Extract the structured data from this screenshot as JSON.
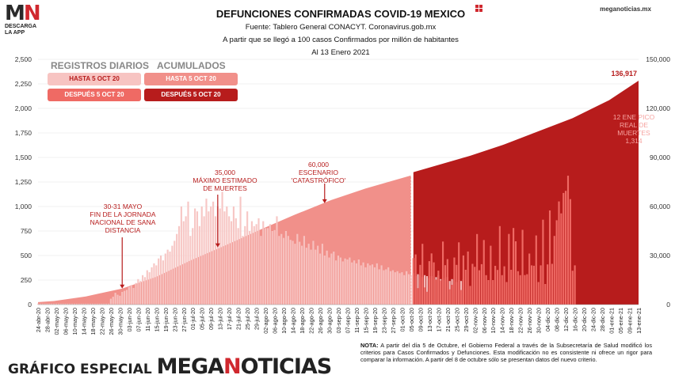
{
  "logo": {
    "mark_m": "M",
    "mark_n": "N",
    "line1": "DESCARGA",
    "line2": "LA APP"
  },
  "brand": "meganoticias.mx",
  "header": {
    "title": "DEFUNCIONES CONFIRMADAS COVID-19 MEXICO",
    "source": "Fuente: Tablero General CONACYT. Coronavirus.gob.mx",
    "basis": "A partir que se llegó a 100 casos Confirmados por millón de habitantes",
    "date": "Al 13 Enero 2021"
  },
  "legend": {
    "daily_header": "REGISTROS DIARIOS",
    "cumulative_header": "ACUMULADOS",
    "daily_before": "HASTA 5 OCT 20",
    "daily_after": "DESPUÉS 5 OCT 20",
    "cum_before": "HASTA 5 OCT 20",
    "cum_after": "DESPUÉS 5 OCT 20",
    "colors": {
      "daily_before": "#f7c4c2",
      "daily_after": "#ef6a64",
      "cum_before": "#f1908a",
      "cum_after": "#b71c1c"
    }
  },
  "annotations": {
    "end_sana_distancia": [
      "30-31 MAYO",
      "FIN DE LA JORNADA",
      "NACIONAL DE SANA",
      "DISTANCIA"
    ],
    "max_estimado": [
      "35,000",
      "MÁXIMO ESTIMADO",
      "DE MUERTES"
    ],
    "catastrofico": [
      "60,000",
      "ESCENARIO",
      "'CATASTRÓFICO'"
    ],
    "pico": [
      "12 ENE PICO",
      "REAL DE",
      "MUERTES",
      "1,314"
    ]
  },
  "footer": {
    "label": "GRÁFICO ESPECIAL",
    "brand_a": "MEGA",
    "brand_b": "N",
    "brand_c": "OTICIAS",
    "nota_label": "NOTA:",
    "nota_text": " A partir del día 5 de Octubre, el Gobierno Federal a través de la Subsecretaría de Salud modificó los criterios para Casos Confirmados y Defunciones. Esta modificación no es consistente ni ofrece un rigor para comparar la información. A partir del 8 de octubre sólo se presentan datos del nuevo criterio."
  },
  "chart_data": {
    "type": "bar",
    "left_axis": {
      "label": "Registros diarios",
      "ticks": [
        0,
        250,
        500,
        750,
        1000,
        1250,
        1500,
        1750,
        2000,
        2250,
        2500
      ],
      "tick_labels": [
        "0",
        "250",
        "500",
        "750",
        "1,000",
        "1,250",
        "1,500",
        "1,750",
        "2,000",
        "2,250",
        "2,500"
      ],
      "ylim": [
        0,
        2500
      ]
    },
    "right_axis": {
      "label": "Acumulados",
      "ticks": [
        0,
        30000,
        60000,
        90000,
        120000,
        150000
      ],
      "tick_labels": [
        "0",
        "30,000",
        "60,000",
        "90,000",
        "120,000",
        "150,000"
      ],
      "ylim": [
        0,
        150000
      ]
    },
    "x_range": [
      "2020-04-24",
      "2021-01-13"
    ],
    "x_tick_labels": [
      "24-abr-20",
      "28-abr-20",
      "02-may-20",
      "06-may-20",
      "10-may-20",
      "14-may-20",
      "18-may-20",
      "22-may-20",
      "26-may-20",
      "30-may-20",
      "03-jun-20",
      "07-jun-20",
      "11-jun-20",
      "15-jun-20",
      "19-jun-20",
      "23-jun-20",
      "27-jun-20",
      "01-jul-20",
      "05-jul-20",
      "09-jul-20",
      "13-jul-20",
      "17-jul-20",
      "21-jul-20",
      "25-jul-20",
      "29-jul-20",
      "02-ago-20",
      "06-ago-20",
      "10-ago-20",
      "14-ago-20",
      "18-ago-20",
      "22-ago-20",
      "26-ago-20",
      "30-ago-20",
      "03-sep-20",
      "07-sep-20",
      "11-sep-20",
      "15-sep-20",
      "19-sep-20",
      "23-sep-20",
      "27-sep-20",
      "01-oct-20",
      "05-oct-20",
      "09-oct-20",
      "13-oct-20",
      "17-oct-20",
      "21-oct-20",
      "25-oct-20",
      "29-oct-20",
      "02-nov-20",
      "06-nov-20",
      "10-nov-20",
      "14-nov-20",
      "18-nov-20",
      "22-nov-20",
      "26-nov-20",
      "30-nov-20",
      "04-dic-20",
      "08-dic-20",
      "12-dic-20",
      "16-dic-20",
      "20-dic-20",
      "24-dic-20",
      "28-dic-20",
      "01-ene-21",
      "05-ene-21",
      "09-ene-21",
      "13-ene-21"
    ],
    "regime_change": "2020-10-05",
    "daily_before": {
      "name": "Registros diarios hasta 5 oct 20",
      "x_start": "2020-04-24",
      "values": [
        10,
        10,
        10,
        10,
        10,
        10,
        10,
        10,
        10,
        10,
        10,
        10,
        10,
        10,
        10,
        10,
        10,
        10,
        10,
        10,
        10,
        10,
        10,
        10,
        10,
        10,
        10,
        10,
        10,
        10,
        10,
        10,
        60,
        80,
        120,
        100,
        90,
        130,
        140,
        150,
        180,
        200,
        170,
        220,
        260,
        240,
        300,
        280,
        350,
        330,
        380,
        420,
        400,
        470,
        500,
        450,
        520,
        560,
        540,
        600,
        650,
        720,
        800,
        1000,
        850,
        900,
        1050,
        700,
        780,
        980,
        950,
        800,
        1000,
        900,
        1080,
        950,
        1000,
        1050,
        900,
        1000,
        980,
        1150,
        950,
        1000,
        900,
        850,
        1000,
        880,
        780,
        1100,
        700,
        800,
        950,
        750,
        850,
        800,
        820,
        880,
        700,
        850,
        780,
        780,
        820,
        750,
        760,
        900,
        700,
        720,
        680,
        750,
        700,
        660,
        650,
        620,
        720,
        640,
        600,
        700,
        580,
        620,
        560,
        650,
        560,
        600,
        520,
        620,
        500,
        550,
        480,
        520,
        540,
        450,
        500,
        480,
        440,
        470,
        460,
        480,
        430,
        450,
        420,
        460,
        400,
        430,
        380,
        420,
        400,
        410,
        380,
        420,
        360,
        400,
        350,
        360,
        380,
        340,
        350,
        330,
        340,
        320,
        330,
        300,
        340,
        310,
        300,
        320,
        290,
        310,
        300,
        280,
        300,
        290,
        270,
        290,
        260,
        280,
        300,
        260,
        270,
        250,
        280,
        240,
        260,
        250,
        230,
        250,
        240,
        260
      ]
    },
    "daily_after": {
      "name": "Registros diarios después 5 oct 20",
      "x_start": "2020-10-06",
      "values": [
        474,
        511,
        168,
        405,
        619,
        175,
        131,
        443,
        522,
        431,
        255,
        346,
        247,
        643,
        402,
        464,
        156,
        202,
        480,
        405,
        635,
        148,
        501,
        355,
        541,
        190,
        415,
        385,
        719,
        350,
        412,
        658,
        300,
        250,
        600,
        250,
        395,
        353,
        800,
        300,
        390,
        230,
        720,
        355,
        781,
        645,
        340,
        300,
        762,
        301,
        310,
        520,
        400,
        396,
        705,
        230,
        400,
        865,
        210,
        410,
        960,
        415,
        700,
        860,
        1052,
        930,
        1138,
        1160,
        1314,
        1075,
        345,
        400
      ]
    },
    "cumulative_before": {
      "name": "Acumulados hasta 5 oct 20",
      "points": [
        [
          "2020-04-24",
          1500
        ],
        [
          "2020-05-01",
          2200
        ],
        [
          "2020-05-15",
          5000
        ],
        [
          "2020-05-31",
          9800
        ],
        [
          "2020-06-15",
          17000
        ],
        [
          "2020-06-30",
          27000
        ],
        [
          "2020-07-15",
          36000
        ],
        [
          "2020-07-31",
          46000
        ],
        [
          "2020-08-15",
          55000
        ],
        [
          "2020-08-31",
          64000
        ],
        [
          "2020-09-15",
          71000
        ],
        [
          "2020-09-30",
          77000
        ],
        [
          "2020-10-05",
          79000
        ]
      ]
    },
    "cumulative_after": {
      "name": "Acumulados después 5 oct 20",
      "points": [
        [
          "2020-10-06",
          81000
        ],
        [
          "2020-10-31",
          91000
        ],
        [
          "2020-11-15",
          98000
        ],
        [
          "2020-11-30",
          106000
        ],
        [
          "2020-12-15",
          114000
        ],
        [
          "2020-12-31",
          125000
        ],
        [
          "2021-01-13",
          136917
        ]
      ]
    },
    "final_label": "136,917",
    "grid": true
  }
}
